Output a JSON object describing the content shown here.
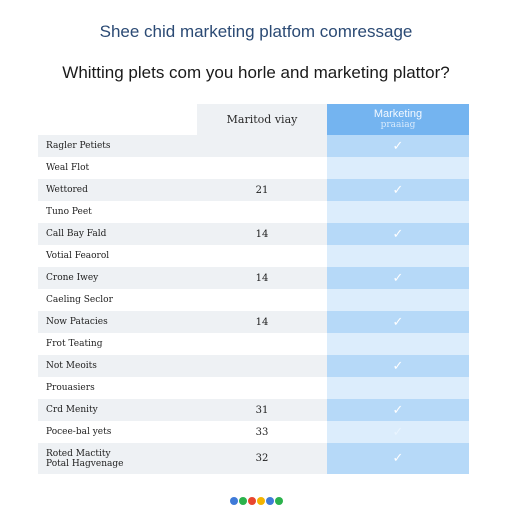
{
  "header": {
    "title": "Shee chid marketing platfom comressage",
    "question": "Whitting plets com you horle and marketing plattor?"
  },
  "table": {
    "columns": [
      {
        "label": "Maritod viay",
        "sub": ""
      },
      {
        "label": "Marketing",
        "sub": "praaiag"
      }
    ],
    "rows": [
      {
        "label": "Ragler Petiets",
        "value": "",
        "check": "✓"
      },
      {
        "label": "Weal Flot",
        "value": "",
        "check": ""
      },
      {
        "label": "Wettored",
        "value": "21",
        "check": "✓"
      },
      {
        "label": "Tuno Peet",
        "value": "",
        "check": ""
      },
      {
        "label": "Call Bay Fald",
        "value": "14",
        "check": "✓"
      },
      {
        "label": "Votial Feaorol",
        "value": "",
        "check": ""
      },
      {
        "label": "Crone Iwey",
        "value": "14",
        "check": "✓"
      },
      {
        "label": "Caeling Seclor",
        "value": "",
        "check": ""
      },
      {
        "label": "Now Patacies",
        "value": "14",
        "check": "✓"
      },
      {
        "label": "Frot Teating",
        "value": "",
        "check": ""
      },
      {
        "label": "Not Meoits",
        "value": "",
        "check": "✓"
      },
      {
        "label": "Prouasiers",
        "value": "",
        "check": ""
      },
      {
        "label": "Crd Menity",
        "value": "31",
        "check": "✓"
      },
      {
        "label": "Pocee-bal yets",
        "value": "33",
        "check": "✓"
      },
      {
        "label": "Roted Mactity",
        "label2": "Potal Hagvenage",
        "value": "32",
        "check": "✓"
      }
    ]
  },
  "brand": {
    "colors": [
      "#3f7ad8",
      "#2bb24c",
      "#e8462f",
      "#f4b400",
      "#3f7ad8",
      "#2bb24c"
    ],
    "icon": "logo-dots-icon"
  }
}
